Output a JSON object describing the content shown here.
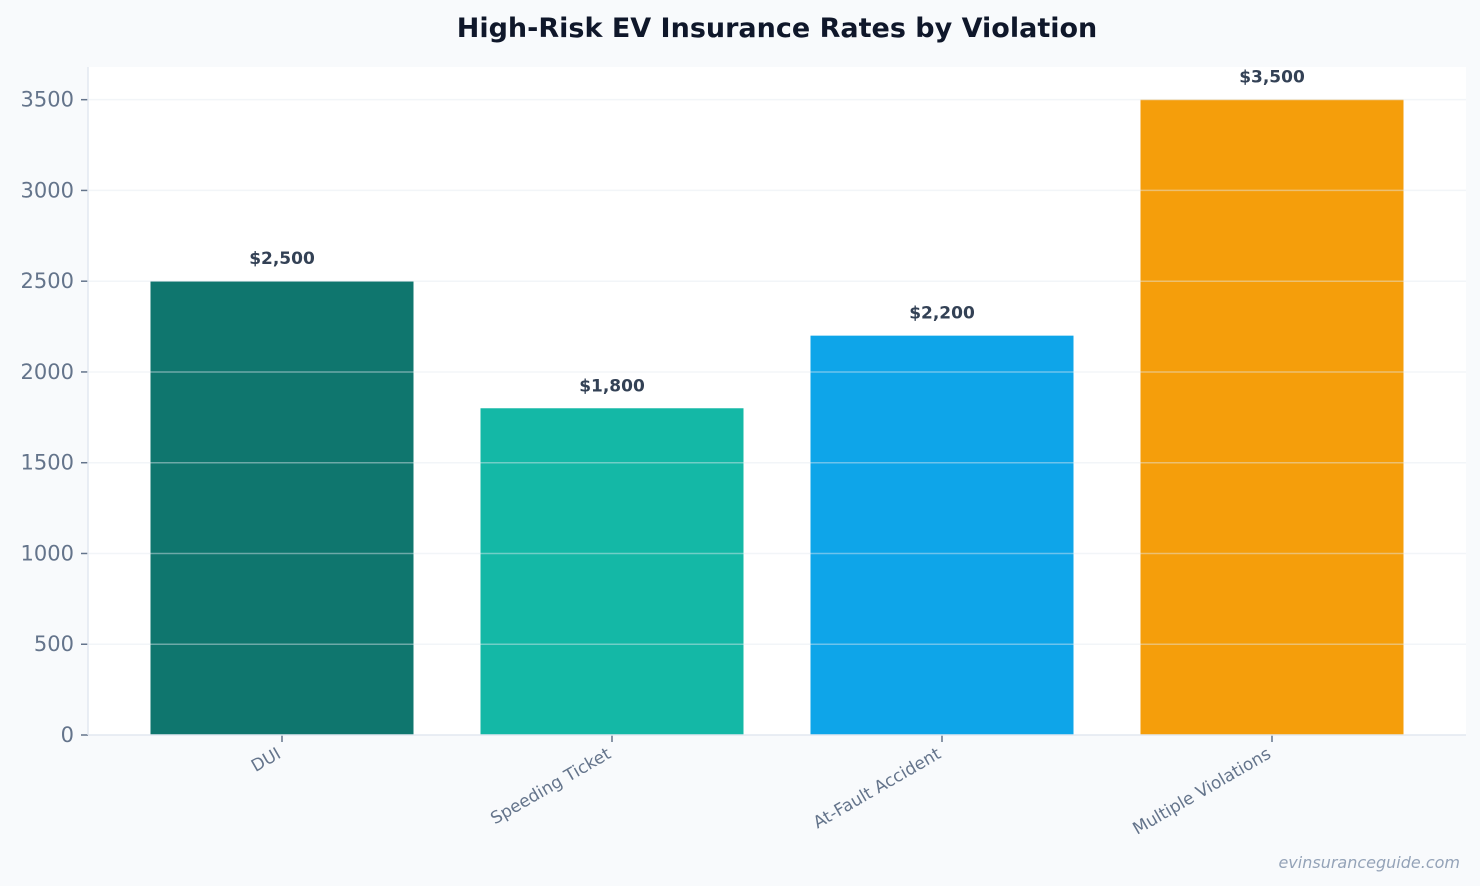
{
  "chart_data": {
    "type": "bar",
    "title": "High-Risk EV Insurance Rates by Violation",
    "xlabel": "",
    "ylabel": "",
    "categories": [
      "DUI",
      "Speeding Ticket",
      "At-Fault Accident",
      "Multiple Violations"
    ],
    "values": [
      2500,
      1800,
      2200,
      3500
    ],
    "data_labels": [
      "$2,500",
      "$1,800",
      "$2,200",
      "$3,500"
    ],
    "colors": [
      "#0f766e",
      "#14b8a6",
      "#0ea5e9",
      "#f59e0b"
    ],
    "ylim": [
      0,
      3680
    ],
    "yticks": [
      0,
      500,
      1000,
      1500,
      2000,
      2500,
      3000,
      3500
    ],
    "grid": true,
    "legend": "none"
  },
  "watermark": "evinsuranceguide.com"
}
